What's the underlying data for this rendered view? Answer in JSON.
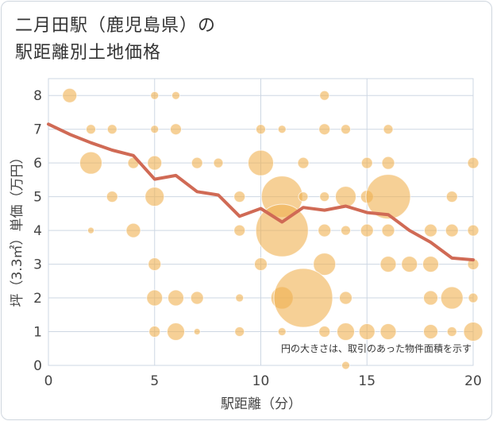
{
  "title_line1": "二月田駅（鹿児島県）の",
  "title_line2": "駅距離別土地価格",
  "chart_data": {
    "type": "scatter",
    "xlabel": "駅距離（分）",
    "ylabel": "坪（3.3㎡）単価（万円）",
    "xlim": [
      0,
      20
    ],
    "ylim": [
      0,
      8.5
    ],
    "x_ticks": [
      0,
      5,
      10,
      15,
      20
    ],
    "y_ticks": [
      0,
      1,
      2,
      3,
      4,
      5,
      6,
      7,
      8
    ],
    "grid": true,
    "note": "円の大きさは、取引のあった物件面積を示す",
    "colors": {
      "bubble": "#f0b050",
      "line": "#d06a55",
      "grid": "#cdd7e3"
    },
    "bubbles": [
      {
        "x": 1,
        "y": 8,
        "s": 9
      },
      {
        "x": 5,
        "y": 8,
        "s": 5
      },
      {
        "x": 6,
        "y": 8,
        "s": 5
      },
      {
        "x": 13,
        "y": 8,
        "s": 6
      },
      {
        "x": 2,
        "y": 7,
        "s": 6
      },
      {
        "x": 3,
        "y": 7,
        "s": 6
      },
      {
        "x": 5,
        "y": 7,
        "s": 5
      },
      {
        "x": 6,
        "y": 7,
        "s": 7
      },
      {
        "x": 10,
        "y": 7,
        "s": 6
      },
      {
        "x": 11,
        "y": 7,
        "s": 5
      },
      {
        "x": 13,
        "y": 7,
        "s": 7
      },
      {
        "x": 14,
        "y": 7,
        "s": 6
      },
      {
        "x": 16,
        "y": 7,
        "s": 6
      },
      {
        "x": 2,
        "y": 6,
        "s": 14
      },
      {
        "x": 4,
        "y": 6,
        "s": 7
      },
      {
        "x": 5,
        "y": 6,
        "s": 9
      },
      {
        "x": 7,
        "y": 6,
        "s": 7
      },
      {
        "x": 8,
        "y": 6,
        "s": 6
      },
      {
        "x": 10,
        "y": 6,
        "s": 16
      },
      {
        "x": 12,
        "y": 6,
        "s": 7
      },
      {
        "x": 15,
        "y": 6,
        "s": 7
      },
      {
        "x": 16,
        "y": 6,
        "s": 8
      },
      {
        "x": 20,
        "y": 6,
        "s": 7
      },
      {
        "x": 3,
        "y": 5,
        "s": 7
      },
      {
        "x": 5,
        "y": 5,
        "s": 12
      },
      {
        "x": 9,
        "y": 5,
        "s": 7
      },
      {
        "x": 11,
        "y": 5,
        "s": 26
      },
      {
        "x": 12,
        "y": 5,
        "s": 6
      },
      {
        "x": 13,
        "y": 5,
        "s": 6
      },
      {
        "x": 14,
        "y": 5,
        "s": 13
      },
      {
        "x": 15,
        "y": 5,
        "s": 8
      },
      {
        "x": 16,
        "y": 5,
        "s": 28
      },
      {
        "x": 19,
        "y": 5,
        "s": 7
      },
      {
        "x": 2,
        "y": 4,
        "s": 4
      },
      {
        "x": 4,
        "y": 4,
        "s": 9
      },
      {
        "x": 9,
        "y": 4,
        "s": 7
      },
      {
        "x": 11,
        "y": 4,
        "s": 33
      },
      {
        "x": 13,
        "y": 4,
        "s": 8
      },
      {
        "x": 14,
        "y": 4,
        "s": 6
      },
      {
        "x": 15,
        "y": 4,
        "s": 8
      },
      {
        "x": 16,
        "y": 4,
        "s": 8
      },
      {
        "x": 18,
        "y": 4,
        "s": 8
      },
      {
        "x": 19,
        "y": 4,
        "s": 8
      },
      {
        "x": 20,
        "y": 4,
        "s": 7
      },
      {
        "x": 5,
        "y": 3,
        "s": 8
      },
      {
        "x": 10,
        "y": 3,
        "s": 8
      },
      {
        "x": 13,
        "y": 3,
        "s": 14
      },
      {
        "x": 16,
        "y": 3,
        "s": 10
      },
      {
        "x": 17,
        "y": 3,
        "s": 10
      },
      {
        "x": 18,
        "y": 3,
        "s": 10
      },
      {
        "x": 20,
        "y": 3,
        "s": 7
      },
      {
        "x": 5,
        "y": 2,
        "s": 10
      },
      {
        "x": 6,
        "y": 2,
        "s": 10
      },
      {
        "x": 7,
        "y": 2,
        "s": 8
      },
      {
        "x": 9,
        "y": 2,
        "s": 5
      },
      {
        "x": 11,
        "y": 2,
        "s": 14
      },
      {
        "x": 12,
        "y": 2,
        "s": 37
      },
      {
        "x": 14,
        "y": 2,
        "s": 8
      },
      {
        "x": 18,
        "y": 2,
        "s": 9
      },
      {
        "x": 19,
        "y": 2,
        "s": 14
      },
      {
        "x": 20,
        "y": 2,
        "s": 6
      },
      {
        "x": 5,
        "y": 1,
        "s": 7
      },
      {
        "x": 6,
        "y": 1,
        "s": 11
      },
      {
        "x": 7,
        "y": 1,
        "s": 4
      },
      {
        "x": 9,
        "y": 1,
        "s": 6
      },
      {
        "x": 11,
        "y": 1,
        "s": 5
      },
      {
        "x": 13,
        "y": 1,
        "s": 7
      },
      {
        "x": 14,
        "y": 1,
        "s": 11
      },
      {
        "x": 15,
        "y": 1,
        "s": 10
      },
      {
        "x": 16,
        "y": 1,
        "s": 10
      },
      {
        "x": 18,
        "y": 1,
        "s": 9
      },
      {
        "x": 19,
        "y": 1,
        "s": 6
      },
      {
        "x": 20,
        "y": 1,
        "s": 12
      },
      {
        "x": 14,
        "y": 0,
        "s": 5
      }
    ],
    "trend": {
      "x": [
        0,
        1,
        2,
        3,
        4,
        5,
        6,
        7,
        8,
        9,
        10,
        11,
        12,
        13,
        14,
        15,
        16,
        17,
        18,
        19,
        20
      ],
      "y": [
        7.15,
        6.85,
        6.6,
        6.38,
        6.22,
        5.52,
        5.63,
        5.15,
        5.05,
        4.42,
        4.65,
        4.25,
        4.68,
        4.6,
        4.72,
        4.53,
        4.47,
        4.0,
        3.65,
        3.18,
        3.13
      ]
    }
  }
}
